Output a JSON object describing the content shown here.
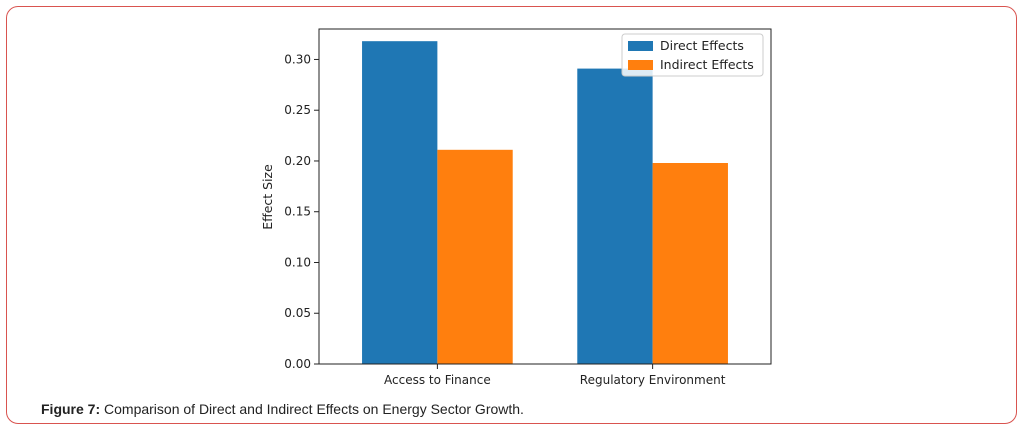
{
  "figure": {
    "caption_label": "Figure 7:",
    "caption_text": " Comparison of Direct and Indirect Effects on Energy Sector Growth."
  },
  "chart_data": {
    "type": "bar",
    "categories": [
      "Access to Finance",
      "Regulatory Environment"
    ],
    "series": [
      {
        "name": "Direct Effects",
        "values": [
          0.318,
          0.291
        ],
        "color": "#1f77b4"
      },
      {
        "name": "Indirect Effects",
        "values": [
          0.211,
          0.198
        ],
        "color": "#ff7f0e"
      }
    ],
    "title": "",
    "xlabel": "",
    "ylabel": "Effect Size",
    "ylim": [
      0,
      0.33
    ],
    "yticks": [
      "0.00",
      "0.05",
      "0.10",
      "0.15",
      "0.20",
      "0.25",
      "0.30"
    ],
    "ytick_values": [
      0,
      0.05,
      0.1,
      0.15,
      0.2,
      0.25,
      0.3
    ],
    "grid": false,
    "legend_position": "top-right"
  }
}
